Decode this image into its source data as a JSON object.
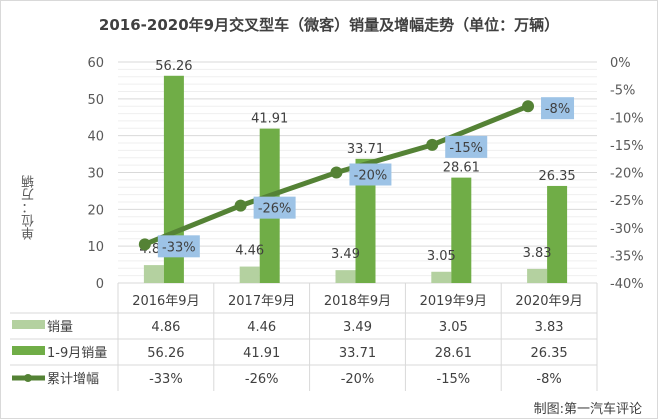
{
  "chart_data": {
    "type": "bar+line",
    "title": "2016-2020年9月交叉型车（微客）销量及增幅走势（单位：万辆）",
    "ylabel": "单位：万辆",
    "categories": [
      "2016年9月",
      "2017年9月",
      "2018年9月",
      "2019年9月",
      "2020年9月"
    ],
    "ylim": [
      0,
      60
    ],
    "yticks": [
      0,
      10,
      20,
      30,
      40,
      50,
      60
    ],
    "y2lim": [
      -40,
      0
    ],
    "y2ticks": [
      "0%",
      "-5%",
      "-10%",
      "-15%",
      "-20%",
      "-25%",
      "-30%",
      "-35%",
      "-40%"
    ],
    "grid": true,
    "series": [
      {
        "name": "销量",
        "type": "bar",
        "color": "#b4d1a0",
        "values": [
          4.86,
          4.46,
          3.49,
          3.05,
          3.83
        ],
        "labels": [
          "4.86",
          "4.46",
          "3.49",
          "3.05",
          "3.83"
        ]
      },
      {
        "name": "1-9月销量",
        "type": "bar",
        "color": "#70ad47",
        "values": [
          56.26,
          41.91,
          33.71,
          28.61,
          26.35
        ],
        "labels": [
          "56.26",
          "41.91",
          "33.71",
          "28.61",
          "26.35"
        ]
      },
      {
        "name": "累计增幅",
        "type": "line",
        "axis": "right",
        "color": "#548235",
        "label_bg": "#9dc3e6",
        "values": [
          -33,
          -26,
          -20,
          -15,
          -8
        ],
        "labels": [
          "-33%",
          "-26%",
          "-20%",
          "-15%",
          "-8%"
        ]
      }
    ],
    "legend": "data-table-bottom"
  },
  "source": "制图:第一汽车评论"
}
